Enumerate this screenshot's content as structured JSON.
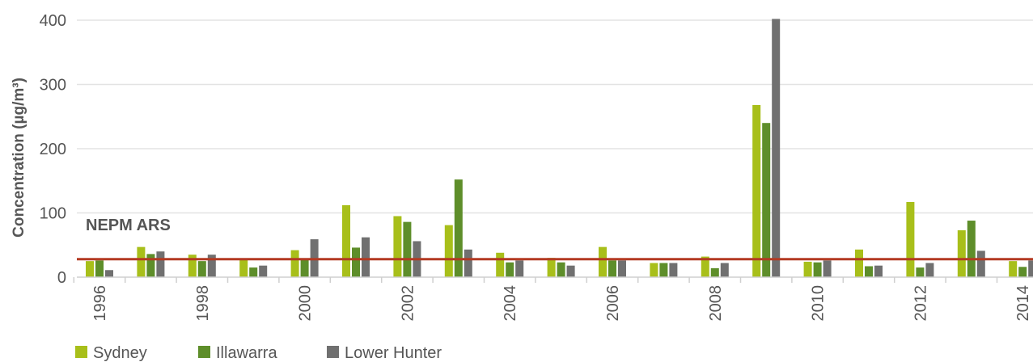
{
  "chart_data": {
    "type": "bar",
    "categories": [
      "1996",
      "1997",
      "1998",
      "1999",
      "2000",
      "2001",
      "2002",
      "2003",
      "2004",
      "2005",
      "2006",
      "2007",
      "2008",
      "2009",
      "2010",
      "2011",
      "2012",
      "2013",
      "2014"
    ],
    "x_tick_labels": [
      "1996",
      "1998",
      "2000",
      "2002",
      "2004",
      "2006",
      "2008",
      "2010",
      "2012",
      "2014"
    ],
    "ylabel": "Concentration (µg/m³)",
    "ylim": [
      0,
      400
    ],
    "y_ticks": [
      0,
      100,
      200,
      300,
      400
    ],
    "grid": true,
    "legend_position": "bottom-left",
    "series": [
      {
        "name": "Sydney",
        "color": "#a8bf1a",
        "values": [
          25,
          47,
          35,
          27,
          42,
          112,
          95,
          81,
          38,
          30,
          47,
          22,
          32,
          268,
          24,
          43,
          117,
          73,
          25
        ]
      },
      {
        "name": "Illawarra",
        "color": "#5e8e2a",
        "values": [
          26,
          36,
          25,
          15,
          28,
          46,
          86,
          152,
          23,
          23,
          26,
          22,
          14,
          240,
          23,
          17,
          15,
          88,
          16
        ]
      },
      {
        "name": "Lower Hunter",
        "color": "#707070",
        "values": [
          11,
          40,
          35,
          18,
          59,
          62,
          56,
          43,
          26,
          18,
          26,
          22,
          22,
          415,
          26,
          18,
          22,
          41,
          26
        ]
      }
    ],
    "reference_line": {
      "label": "NEPM ARS",
      "value": 28,
      "color": "#b33a22"
    }
  }
}
